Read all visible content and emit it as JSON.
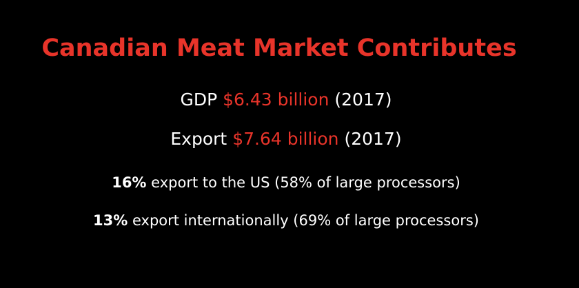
{
  "slide": {
    "title": "Canadian Meat Market Contributes",
    "gdp": {
      "label": "GDP",
      "value": "$6.43 billion",
      "year": "(2017)"
    },
    "export": {
      "label": "Export",
      "value": "$7.64 billion",
      "year": "(2017)"
    },
    "us_export": {
      "percent": "16%",
      "text": "export to the US (58% of large processors)"
    },
    "intl_export": {
      "percent": "13%",
      "text": "export internationally (69% of large processors)"
    }
  },
  "colors": {
    "background": "#000000",
    "accent": "#e8342a",
    "text": "#ffffff"
  }
}
